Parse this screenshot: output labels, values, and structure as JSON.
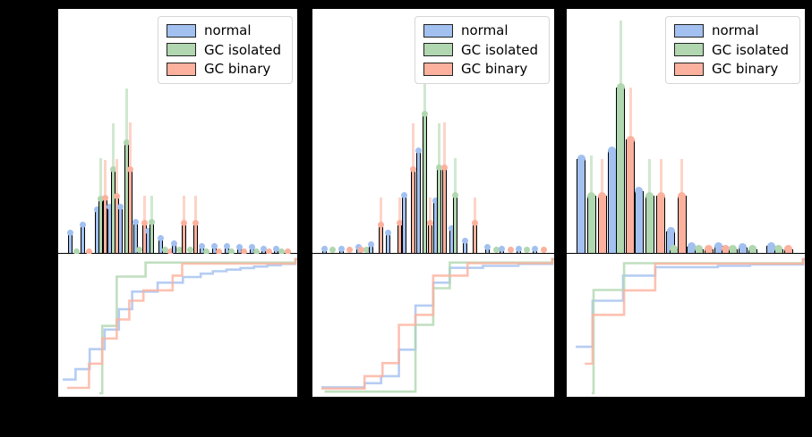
{
  "window": {
    "background": "#000000",
    "axes_background": "#ffffff",
    "note": "matplotlib-style figure; axis tick labels rendered black-on-black (not visible)"
  },
  "legend": {
    "items": [
      {
        "label": "normal",
        "series": "blue",
        "color": "#a2c0f0"
      },
      {
        "label": "GC isolated",
        "series": "green",
        "color": "#b0d7b0"
      },
      {
        "label": "GC binary",
        "series": "salmon",
        "color": "#fcb19e"
      }
    ]
  },
  "palette": {
    "blue": {
      "fill": "#a2c0f0",
      "pale": "#c7d9f8"
    },
    "green": {
      "fill": "#b0d7b0",
      "pale": "#d0e8d0"
    },
    "salmon": {
      "fill": "#fcb19e",
      "pale": "#fdd4c8"
    },
    "edge": "#000000"
  },
  "chart_data": [
    {
      "type": "bar",
      "title": "",
      "series_names": [
        "normal",
        "GC isolated",
        "GC binary"
      ],
      "units": "fractions of axis range (tick labels not visible in image)",
      "layout": {
        "grid": false,
        "legend_position": "upper right",
        "panels": "histogram with error bars (top), cumulative step plot (bottom)"
      },
      "bar_width_frac": 0.0186,
      "bars": [
        {
          "series": "blue",
          "x": 0.052,
          "h": 0.084
        },
        {
          "series": "green",
          "x": 0.078,
          "h": 0.007
        },
        {
          "series": "blue",
          "x": 0.104,
          "h": 0.114
        },
        {
          "series": "salmon",
          "x": 0.13,
          "h": 0.007
        },
        {
          "series": "blue",
          "x": 0.16,
          "h": 0.179
        },
        {
          "series": "green",
          "x": 0.178,
          "h": 0.223,
          "err_top": 0.388
        },
        {
          "series": "salmon",
          "x": 0.197,
          "h": 0.227,
          "err_top": 0.381
        },
        {
          "series": "blue",
          "x": 0.212,
          "h": 0.187
        },
        {
          "series": "green",
          "x": 0.23,
          "h": 0.344,
          "err_top": 0.531
        },
        {
          "series": "salmon",
          "x": 0.245,
          "h": 0.231,
          "err_top": 0.385
        },
        {
          "series": "blue",
          "x": 0.26,
          "h": 0.187
        },
        {
          "series": "green",
          "x": 0.283,
          "h": 0.451,
          "err_top": 0.674
        },
        {
          "series": "salmon",
          "x": 0.301,
          "h": 0.341,
          "err_top": 0.535
        },
        {
          "series": "blue",
          "x": 0.32,
          "h": 0.128
        },
        {
          "series": "green",
          "x": 0.338,
          "h": 0.011
        },
        {
          "series": "salmon",
          "x": 0.357,
          "h": 0.121,
          "err_top": 0.234
        },
        {
          "series": "blue",
          "x": 0.375,
          "h": 0.088
        },
        {
          "series": "green",
          "x": 0.39,
          "h": 0.125,
          "err_top": 0.234
        },
        {
          "series": "blue",
          "x": 0.427,
          "h": 0.059
        },
        {
          "series": "green",
          "x": 0.446,
          "h": 0.011
        },
        {
          "series": "salmon",
          "x": 0.465,
          "h": 0.007
        },
        {
          "series": "blue",
          "x": 0.48,
          "h": 0.04
        },
        {
          "series": "green",
          "x": 0.502,
          "h": 0.011
        },
        {
          "series": "salmon",
          "x": 0.524,
          "h": 0.121,
          "err_top": 0.234
        },
        {
          "series": "green",
          "x": 0.55,
          "h": 0.011
        },
        {
          "series": "salmon",
          "x": 0.572,
          "h": 0.121,
          "err_top": 0.234
        },
        {
          "series": "blue",
          "x": 0.595,
          "h": 0.029
        },
        {
          "series": "green",
          "x": 0.617,
          "h": 0.007
        },
        {
          "series": "blue",
          "x": 0.647,
          "h": 0.029
        },
        {
          "series": "salmon",
          "x": 0.669,
          "h": 0.007
        },
        {
          "series": "blue",
          "x": 0.699,
          "h": 0.026
        },
        {
          "series": "green",
          "x": 0.721,
          "h": 0.007
        },
        {
          "series": "blue",
          "x": 0.751,
          "h": 0.022
        },
        {
          "series": "salmon",
          "x": 0.773,
          "h": 0.007
        },
        {
          "series": "blue",
          "x": 0.803,
          "h": 0.022
        },
        {
          "series": "green",
          "x": 0.825,
          "h": 0.007
        },
        {
          "series": "blue",
          "x": 0.855,
          "h": 0.018
        },
        {
          "series": "salmon",
          "x": 0.877,
          "h": 0.007
        },
        {
          "series": "blue",
          "x": 0.907,
          "h": 0.018
        },
        {
          "series": "green",
          "x": 0.929,
          "h": 0.007
        },
        {
          "series": "salmon",
          "x": 0.952,
          "h": 0.007
        }
      ],
      "cdf": {
        "blue": [
          [
            0.019,
            0.102
          ],
          [
            0.072,
            0.179
          ],
          [
            0.131,
            0.329
          ],
          [
            0.193,
            0.475
          ],
          [
            0.252,
            0.627
          ],
          [
            0.307,
            0.758
          ],
          [
            0.413,
            0.825
          ],
          [
            0.518,
            0.867
          ],
          [
            0.592,
            0.892
          ],
          [
            0.642,
            0.91
          ],
          [
            0.699,
            0.922
          ],
          [
            0.757,
            0.934
          ],
          [
            0.813,
            0.945
          ],
          [
            0.868,
            0.955
          ],
          [
            0.924,
            0.965
          ],
          [
            0.985,
            1.0
          ]
        ],
        "green": [
          [
            0.171,
            0.0
          ],
          [
            0.183,
            0.502
          ],
          [
            0.243,
            0.87
          ],
          [
            0.363,
            0.975
          ],
          [
            0.985,
            1.0
          ]
        ],
        "salmon": [
          [
            0.037,
            0.04
          ],
          [
            0.128,
            0.221
          ],
          [
            0.183,
            0.408
          ],
          [
            0.243,
            0.55
          ],
          [
            0.295,
            0.69
          ],
          [
            0.354,
            0.767
          ],
          [
            0.475,
            0.877
          ],
          [
            0.515,
            0.967
          ],
          [
            0.985,
            1.0
          ]
        ]
      }
    },
    {
      "type": "bar",
      "title": "",
      "series_names": [
        "normal",
        "GC isolated",
        "GC binary"
      ],
      "units": "fractions of axis range (tick labels not visible in image)",
      "layout": {
        "grid": false,
        "legend_position": "upper right",
        "panels": "histogram with error bars (top), cumulative step plot (bottom)"
      },
      "bar_width_frac": 0.0184,
      "bars": [
        {
          "series": "blue",
          "x": 0.048,
          "h": 0.018
        },
        {
          "series": "green",
          "x": 0.081,
          "h": 0.011
        },
        {
          "series": "blue",
          "x": 0.118,
          "h": 0.018
        },
        {
          "series": "salmon",
          "x": 0.154,
          "h": 0.011
        },
        {
          "series": "blue",
          "x": 0.188,
          "h": 0.022
        },
        {
          "series": "salmon",
          "x": 0.202,
          "h": 0.011
        },
        {
          "series": "green",
          "x": 0.221,
          "h": 0.011
        },
        {
          "series": "blue",
          "x": 0.239,
          "h": 0.033
        },
        {
          "series": "salmon",
          "x": 0.283,
          "h": 0.117,
          "err_top": 0.227
        },
        {
          "series": "blue",
          "x": 0.309,
          "h": 0.084
        },
        {
          "series": "salmon",
          "x": 0.357,
          "h": 0.121,
          "err_top": 0.227
        },
        {
          "series": "blue",
          "x": 0.375,
          "h": 0.238
        },
        {
          "series": "salmon",
          "x": 0.415,
          "h": 0.344,
          "err_top": 0.531
        },
        {
          "series": "blue",
          "x": 0.437,
          "h": 0.418
        },
        {
          "series": "green",
          "x": 0.463,
          "h": 0.568,
          "err_top": 0.703
        },
        {
          "series": "salmon",
          "x": 0.485,
          "h": 0.121,
          "err_top": 0.227
        },
        {
          "series": "blue",
          "x": 0.504,
          "h": 0.216
        },
        {
          "series": "green",
          "x": 0.522,
          "h": 0.348,
          "err_top": 0.531
        },
        {
          "series": "salmon",
          "x": 0.544,
          "h": 0.348,
          "err_top": 0.535
        },
        {
          "series": "blue",
          "x": 0.57,
          "h": 0.099
        },
        {
          "series": "green",
          "x": 0.588,
          "h": 0.238,
          "err_top": 0.388
        },
        {
          "series": "blue",
          "x": 0.625,
          "h": 0.051
        },
        {
          "series": "salmon",
          "x": 0.669,
          "h": 0.121,
          "err_top": 0.227
        },
        {
          "series": "blue",
          "x": 0.717,
          "h": 0.022
        },
        {
          "series": "green",
          "x": 0.754,
          "h": 0.011
        },
        {
          "series": "blue",
          "x": 0.779,
          "h": 0.018
        },
        {
          "series": "salmon",
          "x": 0.816,
          "h": 0.011
        },
        {
          "series": "blue",
          "x": 0.846,
          "h": 0.018
        },
        {
          "series": "green",
          "x": 0.882,
          "h": 0.011
        },
        {
          "series": "blue",
          "x": 0.915,
          "h": 0.018
        },
        {
          "series": "salmon",
          "x": 0.952,
          "h": 0.011
        }
      ],
      "cdf": {
        "blue": [
          [
            0.037,
            0.044
          ],
          [
            0.214,
            0.075
          ],
          [
            0.282,
            0.127
          ],
          [
            0.355,
            0.325
          ],
          [
            0.423,
            0.654
          ],
          [
            0.496,
            0.825
          ],
          [
            0.564,
            0.935
          ],
          [
            0.7,
            0.95
          ],
          [
            0.846,
            0.965
          ],
          [
            0.985,
            1.0
          ]
        ],
        "green": [
          [
            0.05,
            0.012
          ],
          [
            0.423,
            0.51
          ],
          [
            0.496,
            0.783
          ],
          [
            0.564,
            0.975
          ],
          [
            0.985,
            1.0
          ]
        ],
        "salmon": [
          [
            0.037,
            0.035
          ],
          [
            0.214,
            0.127
          ],
          [
            0.288,
            0.225
          ],
          [
            0.355,
            0.51
          ],
          [
            0.423,
            0.585
          ],
          [
            0.496,
            0.877
          ],
          [
            0.637,
            0.97
          ],
          [
            0.985,
            1.0
          ]
        ]
      }
    },
    {
      "type": "bar",
      "title": "",
      "series_names": [
        "normal",
        "GC isolated",
        "GC binary"
      ],
      "units": "fractions of axis range (tick labels not visible in image)",
      "layout": {
        "grid": false,
        "legend_position": "upper right",
        "panels": "histogram with error bars (top), cumulative step plot (bottom)"
      },
      "bar_width_frac": 0.0373,
      "bars": [
        {
          "series": "blue",
          "x": 0.06,
          "h": 0.385
        },
        {
          "series": "green",
          "x": 0.104,
          "h": 0.234,
          "err_top": 0.399
        },
        {
          "series": "salmon",
          "x": 0.149,
          "h": 0.234,
          "err_top": 0.385
        },
        {
          "series": "blue",
          "x": 0.19,
          "h": 0.421
        },
        {
          "series": "green",
          "x": 0.224,
          "h": 0.678,
          "err_top": 0.952
        },
        {
          "series": "salmon",
          "x": 0.265,
          "h": 0.465,
          "err_top": 0.678
        },
        {
          "series": "blue",
          "x": 0.302,
          "h": 0.253
        },
        {
          "series": "green",
          "x": 0.347,
          "h": 0.234,
          "err_top": 0.385
        },
        {
          "series": "salmon",
          "x": 0.392,
          "h": 0.234,
          "err_top": 0.385
        },
        {
          "series": "blue",
          "x": 0.433,
          "h": 0.088
        },
        {
          "series": "green",
          "x": 0.447,
          "h": 0.015
        },
        {
          "series": "salmon",
          "x": 0.481,
          "h": 0.234,
          "err_top": 0.385
        },
        {
          "series": "blue",
          "x": 0.519,
          "h": 0.026
        },
        {
          "series": "green",
          "x": 0.552,
          "h": 0.015
        },
        {
          "series": "salmon",
          "x": 0.593,
          "h": 0.015
        },
        {
          "series": "blue",
          "x": 0.634,
          "h": 0.029
        },
        {
          "series": "salmon",
          "x": 0.664,
          "h": 0.015
        },
        {
          "series": "green",
          "x": 0.694,
          "h": 0.015
        },
        {
          "series": "blue",
          "x": 0.735,
          "h": 0.022
        },
        {
          "series": "green",
          "x": 0.776,
          "h": 0.015
        },
        {
          "series": "blue",
          "x": 0.851,
          "h": 0.029
        },
        {
          "series": "green",
          "x": 0.884,
          "h": 0.015
        },
        {
          "series": "salmon",
          "x": 0.925,
          "h": 0.015
        }
      ],
      "cdf": {
        "blue": [
          [
            0.038,
            0.346
          ],
          [
            0.108,
            0.69
          ],
          [
            0.235,
            0.877
          ],
          [
            0.369,
            0.94
          ],
          [
            0.63,
            0.95
          ],
          [
            0.764,
            0.96
          ],
          [
            0.985,
            1.0
          ]
        ],
        "green": [
          [
            0.104,
            0.0
          ],
          [
            0.112,
            0.77
          ],
          [
            0.239,
            0.97
          ],
          [
            0.985,
            1.0
          ]
        ],
        "salmon": [
          [
            0.075,
            0.22
          ],
          [
            0.108,
            0.585
          ],
          [
            0.239,
            0.767
          ],
          [
            0.369,
            0.967
          ],
          [
            0.985,
            1.0
          ]
        ]
      }
    }
  ]
}
